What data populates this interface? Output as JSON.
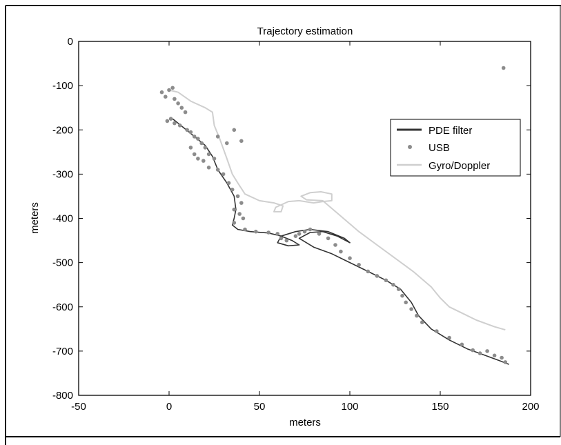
{
  "chart_data": {
    "type": "line",
    "title": "Trajectory estimation",
    "xlabel": "meters",
    "ylabel": "meters",
    "xlim": [
      -50,
      200
    ],
    "ylim": [
      -800,
      0
    ],
    "xticks": [
      -50,
      0,
      50,
      100,
      150,
      200
    ],
    "yticks": [
      0,
      -100,
      -200,
      -300,
      -400,
      -500,
      -600,
      -700,
      -800
    ],
    "xtick_labels": [
      "-50",
      "0",
      "50",
      "100",
      "150",
      "200"
    ],
    "ytick_labels": [
      "0",
      "-100",
      "-200",
      "-300",
      "-400",
      "-500",
      "-600",
      "-700",
      "-800"
    ],
    "grid": false,
    "legend_position": "right",
    "colors": {
      "pde": "#333333",
      "usb": "#8c8c8c",
      "gyro": "#cfcfcf"
    },
    "series": [
      {
        "name": "PDE filter",
        "kind": "line",
        "points": [
          [
            2,
            -175
          ],
          [
            8,
            -195
          ],
          [
            14,
            -215
          ],
          [
            20,
            -235
          ],
          [
            24,
            -260
          ],
          [
            27,
            -290
          ],
          [
            32,
            -320
          ],
          [
            36,
            -350
          ],
          [
            37,
            -380
          ],
          [
            36,
            -400
          ],
          [
            35,
            -415
          ],
          [
            38,
            -425
          ],
          [
            45,
            -430
          ],
          [
            55,
            -433
          ],
          [
            62,
            -440
          ],
          [
            68,
            -450
          ],
          [
            72,
            -460
          ],
          [
            66,
            -462
          ],
          [
            60,
            -455
          ],
          [
            62,
            -440
          ],
          [
            70,
            -430
          ],
          [
            78,
            -425
          ],
          [
            88,
            -430
          ],
          [
            97,
            -445
          ],
          [
            100,
            -455
          ],
          [
            93,
            -440
          ],
          [
            85,
            -430
          ],
          [
            78,
            -432
          ],
          [
            72,
            -445
          ],
          [
            80,
            -465
          ],
          [
            90,
            -480
          ],
          [
            100,
            -500
          ],
          [
            110,
            -520
          ],
          [
            120,
            -540
          ],
          [
            128,
            -560
          ],
          [
            134,
            -590
          ],
          [
            138,
            -620
          ],
          [
            145,
            -650
          ],
          [
            155,
            -675
          ],
          [
            165,
            -695
          ],
          [
            175,
            -710
          ],
          [
            183,
            -722
          ],
          [
            188,
            -730
          ]
        ]
      },
      {
        "name": "USB",
        "kind": "scatter",
        "points": [
          [
            -4,
            -115
          ],
          [
            -2,
            -125
          ],
          [
            0,
            -110
          ],
          [
            2,
            -105
          ],
          [
            3,
            -130
          ],
          [
            5,
            -140
          ],
          [
            7,
            -150
          ],
          [
            9,
            -160
          ],
          [
            -1,
            -180
          ],
          [
            1,
            -175
          ],
          [
            3,
            -185
          ],
          [
            6,
            -190
          ],
          [
            10,
            -200
          ],
          [
            12,
            -205
          ],
          [
            14,
            -215
          ],
          [
            16,
            -220
          ],
          [
            18,
            -230
          ],
          [
            20,
            -240
          ],
          [
            22,
            -255
          ],
          [
            25,
            -265
          ],
          [
            12,
            -240
          ],
          [
            14,
            -255
          ],
          [
            16,
            -265
          ],
          [
            19,
            -270
          ],
          [
            22,
            -285
          ],
          [
            27,
            -290
          ],
          [
            30,
            -300
          ],
          [
            33,
            -320
          ],
          [
            35,
            -335
          ],
          [
            38,
            -350
          ],
          [
            40,
            -365
          ],
          [
            36,
            -380
          ],
          [
            39,
            -390
          ],
          [
            41,
            -400
          ],
          [
            36,
            -410
          ],
          [
            42,
            -425
          ],
          [
            48,
            -430
          ],
          [
            55,
            -432
          ],
          [
            60,
            -435
          ],
          [
            62,
            -445
          ],
          [
            65,
            -450
          ],
          [
            70,
            -440
          ],
          [
            72,
            -435
          ],
          [
            75,
            -430
          ],
          [
            78,
            -425
          ],
          [
            83,
            -435
          ],
          [
            88,
            -445
          ],
          [
            92,
            -460
          ],
          [
            95,
            -475
          ],
          [
            100,
            -490
          ],
          [
            105,
            -505
          ],
          [
            110,
            -520
          ],
          [
            115,
            -530
          ],
          [
            120,
            -540
          ],
          [
            124,
            -550
          ],
          [
            127,
            -560
          ],
          [
            129,
            -575
          ],
          [
            131,
            -590
          ],
          [
            134,
            -605
          ],
          [
            137,
            -620
          ],
          [
            140,
            -635
          ],
          [
            148,
            -655
          ],
          [
            155,
            -670
          ],
          [
            162,
            -685
          ],
          [
            168,
            -698
          ],
          [
            172,
            -705
          ],
          [
            176,
            -700
          ],
          [
            180,
            -710
          ],
          [
            184,
            -715
          ],
          [
            186,
            -725
          ],
          [
            185,
            -60
          ],
          [
            27,
            -215
          ],
          [
            32,
            -230
          ],
          [
            36,
            -200
          ],
          [
            40,
            -225
          ]
        ]
      },
      {
        "name": "Gyro/Doppler",
        "kind": "line",
        "points": [
          [
            0,
            -110
          ],
          [
            5,
            -115
          ],
          [
            12,
            -135
          ],
          [
            20,
            -150
          ],
          [
            24,
            -160
          ],
          [
            25,
            -190
          ],
          [
            28,
            -220
          ],
          [
            32,
            -265
          ],
          [
            35,
            -300
          ],
          [
            38,
            -320
          ],
          [
            42,
            -345
          ],
          [
            50,
            -360
          ],
          [
            58,
            -365
          ],
          [
            63,
            -372
          ],
          [
            62,
            -385
          ],
          [
            58,
            -385
          ],
          [
            59,
            -375
          ],
          [
            66,
            -362
          ],
          [
            72,
            -360
          ],
          [
            80,
            -365
          ],
          [
            85,
            -362
          ],
          [
            90,
            -360
          ],
          [
            90,
            -345
          ],
          [
            84,
            -340
          ],
          [
            78,
            -342
          ],
          [
            73,
            -350
          ],
          [
            76,
            -358
          ],
          [
            85,
            -360
          ],
          [
            95,
            -395
          ],
          [
            105,
            -430
          ],
          [
            115,
            -460
          ],
          [
            125,
            -490
          ],
          [
            135,
            -520
          ],
          [
            145,
            -555
          ],
          [
            150,
            -580
          ],
          [
            155,
            -600
          ],
          [
            160,
            -610
          ],
          [
            170,
            -630
          ],
          [
            180,
            -645
          ],
          [
            186,
            -652
          ]
        ]
      }
    ]
  }
}
